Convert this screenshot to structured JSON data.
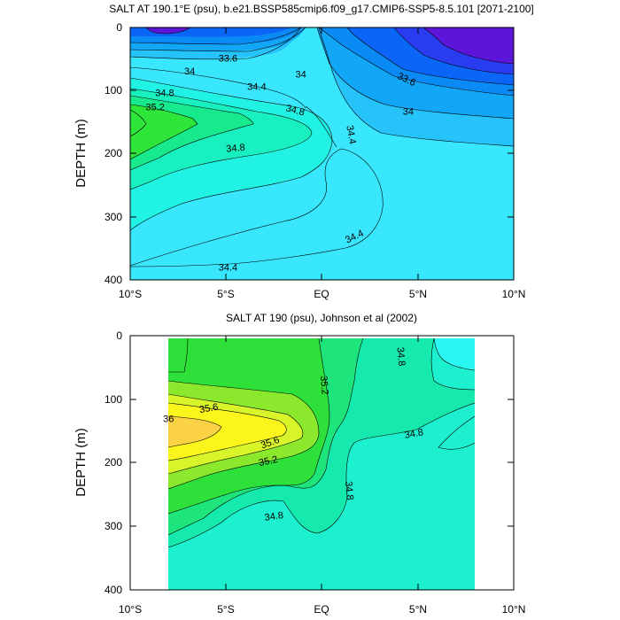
{
  "chart_data": [
    {
      "type": "contour",
      "title": "SALT AT 190.1°E (psu), b.e21.BSSP585cmip6.f09_g17.CMIP6-SSP5-8.5.101 [2071-2100]",
      "ylabel": "DEPTH (m)",
      "xlabel": "",
      "xlim": [
        -10,
        10
      ],
      "ylim": [
        400,
        0
      ],
      "x_ticks": [
        -10,
        -5,
        0,
        5,
        10
      ],
      "x_tick_labels": [
        "10°S",
        "5°S",
        "EQ",
        "5°N",
        "10°N"
      ],
      "y_ticks": [
        0,
        100,
        200,
        300,
        400
      ],
      "y_tick_labels": [
        "0",
        "100",
        "200",
        "300",
        "400"
      ],
      "data_extent": {
        "lat": [
          -10,
          10
        ],
        "depth": [
          5,
          400
        ]
      },
      "level_colors": [
        {
          "min": 33.2,
          "max": 33.4,
          "color": "#5d16d9"
        },
        {
          "min": 33.4,
          "max": 33.6,
          "color": "#2a3cf0"
        },
        {
          "min": 33.6,
          "max": 33.8,
          "color": "#0b66f7"
        },
        {
          "min": 33.8,
          "max": 34.0,
          "color": "#0a8af5"
        },
        {
          "min": 34.0,
          "max": 34.2,
          "color": "#12a6f7"
        },
        {
          "min": 34.2,
          "max": 34.4,
          "color": "#26c2fa"
        },
        {
          "min": 34.4,
          "max": 34.6,
          "color": "#38e6fd"
        },
        {
          "min": 34.6,
          "max": 34.8,
          "color": "#20f2e4"
        },
        {
          "min": 34.8,
          "max": 35.0,
          "color": "#18f0c0"
        },
        {
          "min": 35.0,
          "max": 35.2,
          "color": "#16ea8c"
        },
        {
          "min": 35.2,
          "max": 35.4,
          "color": "#2ee63a"
        }
      ],
      "contour_labels": [
        {
          "text": "33.6",
          "lat": -4.9,
          "depth": 50,
          "angle": 0
        },
        {
          "text": "34",
          "lat": -6.9,
          "depth": 70,
          "angle": 0
        },
        {
          "text": "34",
          "lat": -1.1,
          "depth": 75,
          "angle": 0
        },
        {
          "text": "33.6",
          "lat": 4.4,
          "depth": 83,
          "angle": 25
        },
        {
          "text": "34.4",
          "lat": -3.4,
          "depth": 95,
          "angle": 0
        },
        {
          "text": "34",
          "lat": 4.5,
          "depth": 134,
          "angle": 0
        },
        {
          "text": "34.8",
          "lat": -8.2,
          "depth": 105,
          "angle": 0
        },
        {
          "text": "35.2",
          "lat": -8.7,
          "depth": 127,
          "angle": 0
        },
        {
          "text": "34.8",
          "lat": -1.4,
          "depth": 132,
          "angle": 15
        },
        {
          "text": "34.4",
          "lat": 1.5,
          "depth": 170,
          "angle": 80
        },
        {
          "text": "34.8",
          "lat": -4.5,
          "depth": 192,
          "angle": -5
        },
        {
          "text": "34.4",
          "lat": 1.7,
          "depth": 332,
          "angle": -25
        },
        {
          "text": "34.4",
          "lat": -4.9,
          "depth": 381,
          "angle": 0
        }
      ]
    },
    {
      "type": "contour",
      "title": "SALT AT 190 (psu), Johnson et al (2002)",
      "ylabel": "DEPTH (m)",
      "xlabel": "",
      "xlim": [
        -10,
        10
      ],
      "ylim": [
        400,
        0
      ],
      "x_ticks": [
        -10,
        -5,
        0,
        5,
        10
      ],
      "x_tick_labels": [
        "10°S",
        "5°S",
        "EQ",
        "5°N",
        "10°N"
      ],
      "y_ticks": [
        0,
        100,
        200,
        300,
        400
      ],
      "y_tick_labels": [
        "0",
        "100",
        "200",
        "300",
        "400"
      ],
      "data_extent": {
        "lat": [
          -8,
          8
        ],
        "depth": [
          5,
          400
        ]
      },
      "level_colors": [
        {
          "min": 34.4,
          "max": 34.6,
          "color": "#2af6f2"
        },
        {
          "min": 34.6,
          "max": 34.8,
          "color": "#1cf0cf"
        },
        {
          "min": 34.8,
          "max": 35.0,
          "color": "#16e9ad"
        },
        {
          "min": 35.0,
          "max": 35.2,
          "color": "#1ee57b"
        },
        {
          "min": 35.2,
          "max": 35.4,
          "color": "#2ee03a"
        },
        {
          "min": 35.4,
          "max": 35.6,
          "color": "#8be82c"
        },
        {
          "min": 35.6,
          "max": 35.8,
          "color": "#d8f52a"
        },
        {
          "min": 35.8,
          "max": 36.0,
          "color": "#fbf51c"
        },
        {
          "min": 36.0,
          "max": 36.2,
          "color": "#fbd244"
        }
      ],
      "contour_labels": [
        {
          "text": "34.8",
          "lat": 4.1,
          "depth": 33,
          "angle": 85
        },
        {
          "text": "35.2",
          "lat": 0.1,
          "depth": 78,
          "angle": 85
        },
        {
          "text": "35.6",
          "lat": -5.9,
          "depth": 115,
          "angle": -10
        },
        {
          "text": "36",
          "lat": -8.0,
          "depth": 132,
          "angle": 0
        },
        {
          "text": "35.6",
          "lat": -2.7,
          "depth": 169,
          "angle": -20
        },
        {
          "text": "35.2",
          "lat": -2.8,
          "depth": 198,
          "angle": -12
        },
        {
          "text": "34.8",
          "lat": 4.8,
          "depth": 155,
          "angle": -10
        },
        {
          "text": "34.8",
          "lat": 1.4,
          "depth": 244,
          "angle": 85
        },
        {
          "text": "34.8",
          "lat": -2.5,
          "depth": 285,
          "angle": -8
        }
      ]
    }
  ]
}
